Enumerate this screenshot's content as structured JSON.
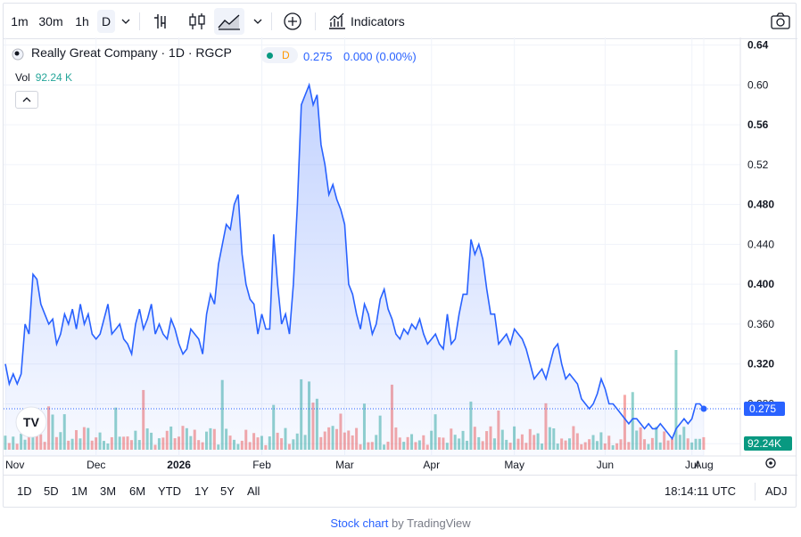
{
  "toolbar": {
    "intervals": [
      "1m",
      "30m",
      "1h",
      "D"
    ],
    "indicators_label": "Indicators"
  },
  "legend": {
    "symbol": "Really Great Company · 1D · RGCP",
    "market_badge": "D",
    "price": "0.275",
    "change": "0.000 (0.00%)",
    "vol_label": "Vol",
    "vol_value": "92.24 K"
  },
  "colors": {
    "line": "#2962ff",
    "area_top": "#c9d6fb",
    "vol_up": "#26a69a",
    "vol_down": "#ef5350",
    "axis_text": "#131722"
  },
  "chart_data": {
    "type": "area",
    "y_ticks": [
      "0.240",
      "0.280",
      "0.320",
      "0.360",
      "0.400",
      "0.440",
      "0.480",
      "0.52",
      "0.56",
      "0.60",
      "0.64"
    ],
    "ylim": [
      0.225,
      0.645
    ],
    "x_tick_labels": [
      "Nov",
      "Dec",
      "2026",
      "Feb",
      "Mar",
      "Apr",
      "May",
      "Jun",
      "Jul",
      "Aug"
    ],
    "last_price_label": "0.275",
    "volume_label": "92.24K",
    "series": [
      {
        "values": [
          0.32,
          0.3,
          0.31,
          0.3,
          0.31,
          0.36,
          0.35,
          0.41,
          0.405,
          0.38,
          0.37,
          0.36,
          0.365,
          0.34,
          0.35,
          0.37,
          0.36,
          0.375,
          0.355,
          0.38,
          0.36,
          0.37,
          0.35,
          0.345,
          0.35,
          0.365,
          0.38,
          0.35,
          0.355,
          0.36,
          0.345,
          0.34,
          0.33,
          0.36,
          0.375,
          0.355,
          0.365,
          0.38,
          0.35,
          0.36,
          0.35,
          0.345,
          0.365,
          0.355,
          0.34,
          0.33,
          0.335,
          0.355,
          0.35,
          0.345,
          0.33,
          0.37,
          0.39,
          0.38,
          0.42,
          0.44,
          0.46,
          0.455,
          0.48,
          0.49,
          0.43,
          0.4,
          0.385,
          0.38,
          0.35,
          0.37,
          0.355,
          0.355,
          0.45,
          0.4,
          0.36,
          0.37,
          0.35,
          0.4,
          0.48,
          0.58,
          0.59,
          0.6,
          0.58,
          0.59,
          0.54,
          0.52,
          0.49,
          0.5,
          0.485,
          0.475,
          0.46,
          0.4,
          0.39,
          0.37,
          0.355,
          0.38,
          0.37,
          0.35,
          0.36,
          0.385,
          0.395,
          0.375,
          0.365,
          0.35,
          0.345,
          0.355,
          0.35,
          0.36,
          0.355,
          0.365,
          0.35,
          0.34,
          0.345,
          0.35,
          0.34,
          0.335,
          0.37,
          0.34,
          0.345,
          0.37,
          0.39,
          0.39,
          0.445,
          0.43,
          0.44,
          0.425,
          0.395,
          0.37,
          0.37,
          0.34,
          0.345,
          0.35,
          0.34,
          0.355,
          0.35,
          0.345,
          0.335,
          0.32,
          0.305,
          0.31,
          0.315,
          0.305,
          0.32,
          0.335,
          0.34,
          0.32,
          0.305,
          0.31,
          0.305,
          0.3,
          0.285,
          0.28,
          0.275,
          0.28,
          0.29,
          0.305,
          0.295,
          0.28,
          0.28,
          0.275,
          0.27,
          0.265,
          0.26,
          0.265,
          0.265,
          0.26,
          0.255,
          0.26,
          0.255,
          0.255,
          0.26,
          0.255,
          0.25,
          0.245,
          0.255,
          0.26,
          0.265,
          0.26,
          0.265,
          0.28,
          0.28,
          0.275
        ]
      }
    ]
  },
  "time_ranges": [
    "1D",
    "5D",
    "1M",
    "3M",
    "6M",
    "YTD",
    "1Y",
    "5Y",
    "All"
  ],
  "clock": "18:14:11 UTC",
  "adj_label": "ADJ",
  "footer": {
    "link": "Stock chart",
    "by": "by TradingView"
  }
}
